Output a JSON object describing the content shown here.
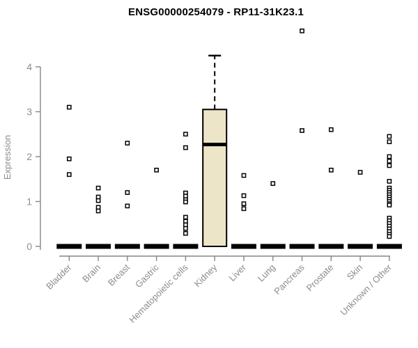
{
  "title": "ENSG00000254079 - RP11-31K23.1",
  "chart_data": {
    "type": "boxplot",
    "title": "ENSG00000254079 - RP11-31K23.1",
    "ylabel": "Expression",
    "xlabel": "",
    "yticks": [
      0,
      1,
      2,
      3,
      4
    ],
    "ylim": [
      0,
      4.9
    ],
    "grid": false,
    "legend": "none",
    "axis_color": "#858585",
    "label_color": "#8c8c8c",
    "box_fill": "#ede5c8",
    "box_stroke": "#000000",
    "categories": [
      "Bladder",
      "Brain",
      "Breast",
      "Gastric",
      "Hematopoietic cells",
      "Kidney",
      "Liver",
      "Lung",
      "Pancreas",
      "Prostate",
      "Skin",
      "Unknown / Other"
    ],
    "boxes": [
      {
        "category": "Bladder",
        "q1": 0,
        "median": 0,
        "q3": 0,
        "whisker_low": 0,
        "whisker_high": 0,
        "outliers": [
          3.1,
          1.95,
          1.6
        ]
      },
      {
        "category": "Brain",
        "q1": 0,
        "median": 0,
        "q3": 0,
        "whisker_low": 0,
        "whisker_high": 0,
        "outliers": [
          1.3,
          1.1,
          1.02,
          0.87,
          0.79
        ]
      },
      {
        "category": "Breast",
        "q1": 0,
        "median": 0,
        "q3": 0,
        "whisker_low": 0,
        "whisker_high": 0,
        "outliers": [
          2.3,
          1.2,
          0.9
        ]
      },
      {
        "category": "Gastric",
        "q1": 0,
        "median": 0,
        "q3": 0,
        "whisker_low": 0,
        "whisker_high": 0,
        "outliers": [
          1.7
        ]
      },
      {
        "category": "Hematopoietic cells",
        "q1": 0,
        "median": 0,
        "q3": 0,
        "whisker_low": 0,
        "whisker_high": 0,
        "outliers": [
          2.5,
          2.2,
          1.19,
          1.12,
          1.04,
          0.99,
          0.65,
          0.56,
          0.48,
          0.4,
          0.29
        ]
      },
      {
        "category": "Kidney",
        "q1": 0,
        "median": 2.27,
        "q3": 3.05,
        "whisker_low": 0,
        "whisker_high": 4.25,
        "outliers": []
      },
      {
        "category": "Liver",
        "q1": 0,
        "median": 0,
        "q3": 0,
        "whisker_low": 0,
        "whisker_high": 0,
        "outliers": [
          1.58,
          1.13,
          0.95,
          0.84
        ]
      },
      {
        "category": "Lung",
        "q1": 0,
        "median": 0,
        "q3": 0,
        "whisker_low": 0,
        "whisker_high": 0,
        "outliers": [
          1.4
        ]
      },
      {
        "category": "Pancreas",
        "q1": 0,
        "median": 0,
        "q3": 0,
        "whisker_low": 0,
        "whisker_high": 0,
        "outliers": [
          4.8,
          2.58
        ]
      },
      {
        "category": "Prostate",
        "q1": 0,
        "median": 0,
        "q3": 0,
        "whisker_low": 0,
        "whisker_high": 0,
        "outliers": [
          2.6,
          1.7
        ]
      },
      {
        "category": "Skin",
        "q1": 0,
        "median": 0,
        "q3": 0,
        "whisker_low": 0,
        "whisker_high": 0,
        "outliers": [
          1.65
        ]
      },
      {
        "category": "Unknown / Other",
        "q1": 0,
        "median": 0,
        "q3": 0,
        "whisker_low": 0,
        "whisker_high": 0,
        "outliers": [
          2.45,
          2.33,
          2.0,
          1.9,
          1.8,
          1.45,
          1.3,
          1.25,
          1.2,
          1.15,
          1.1,
          1.05,
          1.0,
          0.95,
          0.92,
          0.63,
          0.57,
          0.51,
          0.45,
          0.39,
          0.33,
          0.27,
          0.22
        ]
      }
    ]
  }
}
